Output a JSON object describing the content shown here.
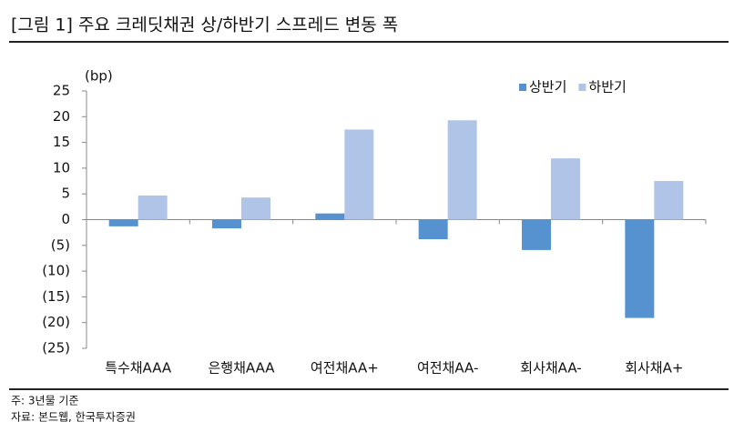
{
  "chart_data": {
    "type": "bar",
    "title": "[그림 1] 주요 크레딧채권 상/하반기 스프레드 변동 폭",
    "y_label": "(bp)",
    "categories": [
      "특수채AAA",
      "은행채AAA",
      "여전채AA+",
      "여전채AA-",
      "회사채AA-",
      "회사채A+"
    ],
    "series": [
      {
        "name": "상반기",
        "color": "#5592cf",
        "values": [
          -1.3,
          -1.7,
          1.2,
          -3.8,
          -5.9,
          -19.1
        ]
      },
      {
        "name": "하반기",
        "color": "#afc4e6",
        "values": [
          4.7,
          4.3,
          17.5,
          19.3,
          11.9,
          7.5
        ]
      }
    ],
    "ylim": [
      -25,
      25
    ],
    "yticks": [
      25,
      20,
      15,
      10,
      5,
      0,
      {
        "value": -5,
        "label": "(5)"
      },
      {
        "value": -10,
        "label": "(10)"
      },
      {
        "value": -15,
        "label": "(15)"
      },
      {
        "value": -20,
        "label": "(20)"
      },
      {
        "value": -25,
        "label": "(25)"
      }
    ],
    "legend": "top-right",
    "notes": [
      "주: 3년물 기준",
      "자료: 본드웹, 한국투자증권"
    ]
  }
}
